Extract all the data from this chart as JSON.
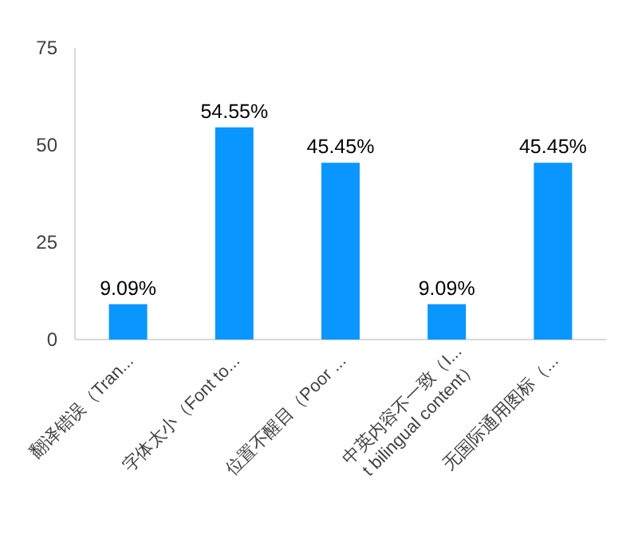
{
  "chart_data": {
    "type": "bar",
    "categories": [
      "翻译错误（Tran...",
      "字体太小（Font to...",
      "位置不醒目（Poor ...",
      "中英内容不一致（I...\nt bilingual content）",
      "无国际通用图标（..."
    ],
    "values": [
      9.09,
      54.55,
      45.45,
      9.09,
      45.45
    ],
    "value_labels": [
      "9.09%",
      "54.55%",
      "45.45%",
      "9.09%",
      "45.45%"
    ],
    "color": "#0a96ff",
    "ylim": [
      0,
      75
    ],
    "yticks": [
      0,
      25,
      50,
      75
    ],
    "grid": false
  }
}
